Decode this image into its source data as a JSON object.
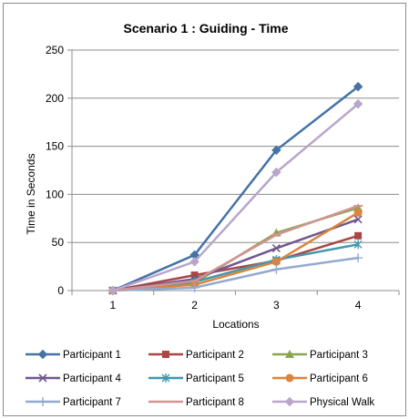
{
  "chart_data": {
    "type": "line",
    "title": "Scenario 1 : Guiding - Time",
    "xlabel": "Locations",
    "ylabel": "Time in Seconds",
    "categories": [
      "1",
      "2",
      "3",
      "4"
    ],
    "ylim": [
      0,
      250
    ],
    "yticks": [
      "0",
      "50",
      "100",
      "150",
      "200",
      "250"
    ],
    "grid": "horizontal",
    "legend_position": "bottom",
    "series": [
      {
        "name": "Participant 1",
        "values": [
          0,
          37,
          146,
          212
        ],
        "color": "#4572A7",
        "marker": "diamond"
      },
      {
        "name": "Participant 2",
        "values": [
          0,
          16,
          31,
          57
        ],
        "color": "#AA4643",
        "marker": "square"
      },
      {
        "name": "Participant 3",
        "values": [
          0,
          8,
          60,
          86
        ],
        "color": "#89A54E",
        "marker": "triangle"
      },
      {
        "name": "Participant 4",
        "values": [
          0,
          12,
          44,
          74
        ],
        "color": "#71588F",
        "marker": "x"
      },
      {
        "name": "Participant 5",
        "values": [
          0,
          9,
          32,
          48
        ],
        "color": "#4198AF",
        "marker": "star"
      },
      {
        "name": "Participant 6",
        "values": [
          0,
          6,
          30,
          81
        ],
        "color": "#DB843D",
        "marker": "circle"
      },
      {
        "name": "Participant 7",
        "values": [
          0,
          3,
          22,
          34
        ],
        "color": "#93A9CF",
        "marker": "plus"
      },
      {
        "name": "Participant 8",
        "values": [
          0,
          10,
          58,
          88
        ],
        "color": "#D19392",
        "marker": "dash"
      },
      {
        "name": "Physical Walk",
        "values": [
          0,
          30,
          123,
          194
        ],
        "color": "#B9A6CB",
        "marker": "diamond"
      }
    ]
  }
}
